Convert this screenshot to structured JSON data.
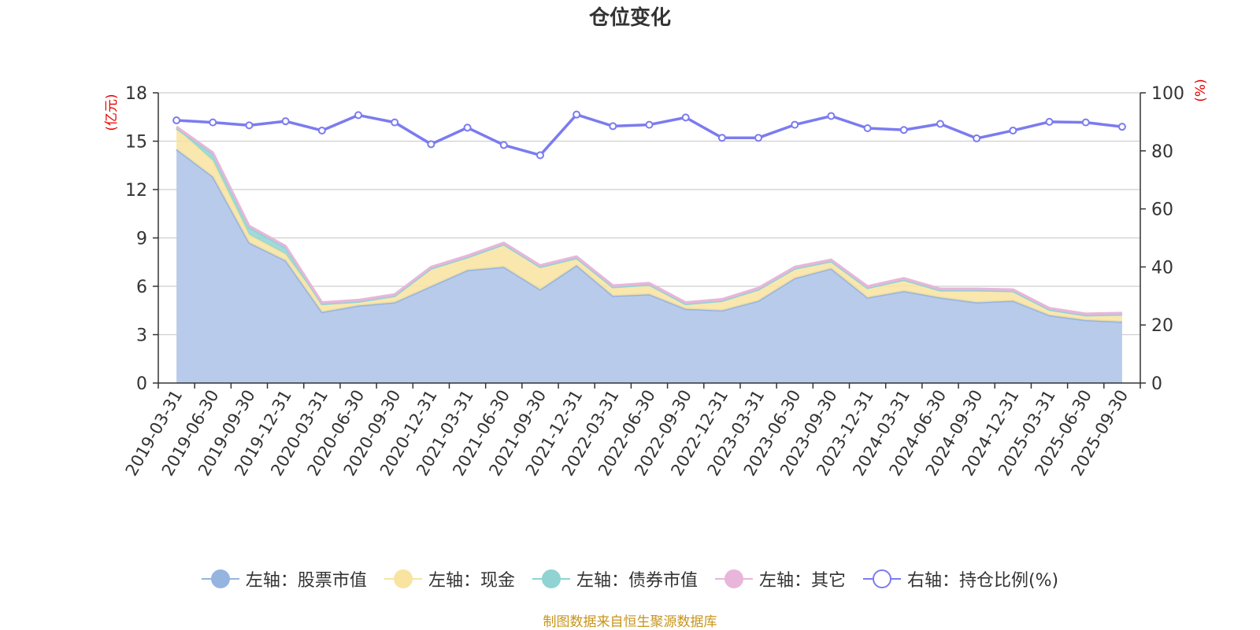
{
  "title": "仓位变化",
  "source_note": "制图数据来自恒生聚源数据库",
  "colors": {
    "stock": "#96b4e0",
    "stock_fill": "#b8cbea",
    "cash": "#f8e3a0",
    "bond": "#8fd3d3",
    "other": "#e8b6da",
    "ratio": "#7b7bf0",
    "axis_unit": "#e60000",
    "source": "#c8951c"
  },
  "legend": [
    {
      "label": "左轴：股票市值",
      "series": "stock"
    },
    {
      "label": "左轴：现金",
      "series": "cash"
    },
    {
      "label": "左轴：债券市值",
      "series": "bond"
    },
    {
      "label": "左轴：其它",
      "series": "other"
    },
    {
      "label": "右轴：持仓比例(%)",
      "series": "ratio"
    }
  ],
  "chart_data": {
    "type": "area",
    "title": "仓位变化",
    "categories": [
      "2019-03-31",
      "2019-06-30",
      "2019-09-30",
      "2019-12-31",
      "2020-03-31",
      "2020-06-30",
      "2020-09-30",
      "2020-12-31",
      "2021-03-31",
      "2021-06-30",
      "2021-09-30",
      "2021-12-31",
      "2022-03-31",
      "2022-06-30",
      "2022-09-30",
      "2022-12-31",
      "2023-03-31",
      "2023-06-30",
      "2023-09-30",
      "2023-12-31",
      "2024-03-31",
      "2024-06-30",
      "2024-09-30",
      "2024-12-31",
      "2025-03-31",
      "2025-06-30",
      "2025-09-30"
    ],
    "left_axis": {
      "unit": "(亿元)",
      "ylim": [
        0,
        18
      ],
      "ticks": [
        0,
        3,
        6,
        9,
        12,
        15,
        18
      ]
    },
    "right_axis": {
      "unit": "(%)",
      "ylim": [
        0,
        100
      ],
      "ticks": [
        0,
        20,
        40,
        60,
        80,
        100
      ]
    },
    "series": [
      {
        "name": "左轴：股票市值",
        "axis": "left",
        "stacked": true,
        "values": [
          14.5,
          12.8,
          8.7,
          7.6,
          4.4,
          4.8,
          5.0,
          6.0,
          7.0,
          7.2,
          5.8,
          7.3,
          5.4,
          5.5,
          4.6,
          4.5,
          5.1,
          6.5,
          7.1,
          5.3,
          5.7,
          5.3,
          5.0,
          5.1,
          4.2,
          3.9,
          3.8
        ]
      },
      {
        "name": "左轴：现金",
        "axis": "left",
        "stacked": true,
        "values": [
          1.3,
          1.0,
          0.5,
          0.4,
          0.5,
          0.25,
          0.4,
          1.1,
          0.8,
          1.4,
          1.4,
          0.45,
          0.55,
          0.6,
          0.3,
          0.6,
          0.7,
          0.6,
          0.45,
          0.6,
          0.7,
          0.45,
          0.75,
          0.6,
          0.35,
          0.3,
          0.45
        ]
      },
      {
        "name": "左轴：债券市值",
        "axis": "left",
        "stacked": true,
        "values": [
          0.0,
          0.4,
          0.45,
          0.4,
          0.0,
          0.0,
          0.0,
          0.0,
          0.0,
          0.0,
          0.0,
          0.0,
          0.0,
          0.0,
          0.0,
          0.0,
          0.0,
          0.0,
          0.0,
          0.0,
          0.0,
          0.0,
          0.0,
          0.0,
          0.0,
          0.0,
          0.0
        ]
      },
      {
        "name": "左轴：其它",
        "axis": "left",
        "stacked": true,
        "values": [
          0.1,
          0.1,
          0.1,
          0.1,
          0.1,
          0.1,
          0.1,
          0.1,
          0.1,
          0.1,
          0.1,
          0.1,
          0.1,
          0.1,
          0.1,
          0.1,
          0.1,
          0.1,
          0.1,
          0.1,
          0.1,
          0.1,
          0.1,
          0.1,
          0.1,
          0.1,
          0.1
        ]
      },
      {
        "name": "右轴：持仓比例(%)",
        "axis": "right",
        "stacked": false,
        "values": [
          90.5,
          89.8,
          88.8,
          90.2,
          87.0,
          92.3,
          89.8,
          82.3,
          88.0,
          82.0,
          78.5,
          92.5,
          88.5,
          89.0,
          91.5,
          84.5,
          84.5,
          89.0,
          92.0,
          87.8,
          87.2,
          89.3,
          84.3,
          87.0,
          90.0,
          89.8,
          88.3
        ]
      }
    ]
  }
}
